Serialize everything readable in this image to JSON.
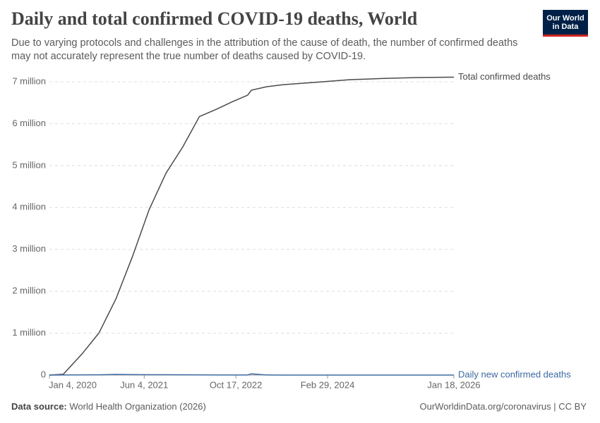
{
  "chart_data": {
    "type": "line",
    "title": "Daily and total confirmed COVID-19 deaths, World",
    "subtitle": "Due to varying protocols and challenges in the attribution of the cause of death, the number of confirmed deaths may not accurately represent the true number of deaths caused by COVID-19.",
    "logo": [
      "Our World",
      "in Data"
    ],
    "source_label": "Data source:",
    "source": "World Health Organization (2026)",
    "footer_right": "OurWorldinData.org/coronavirus | CC BY",
    "x": [
      "2020-01-04",
      "2020-03-20",
      "2020-07-01",
      "2020-10-01",
      "2021-01-01",
      "2021-04-01",
      "2021-07-01",
      "2021-10-01",
      "2022-01-01",
      "2022-04-01",
      "2022-07-01",
      "2022-10-01",
      "2022-12-20",
      "2023-01-10",
      "2023-04-01",
      "2023-07-01",
      "2024-01-01",
      "2024-07-01",
      "2025-01-01",
      "2025-07-01",
      "2026-01-18"
    ],
    "series": [
      {
        "name": "Total confirmed deaths",
        "color": "#4a4a4a",
        "values": [
          0,
          20000,
          510000,
          1010000,
          1820000,
          2830000,
          3950000,
          4820000,
          5450000,
          6170000,
          6340000,
          6530000,
          6680000,
          6800000,
          6880000,
          6930000,
          6990000,
          7050000,
          7080000,
          7100000,
          7110000
        ]
      },
      {
        "name": "Daily new confirmed deaths",
        "color": "#3c6aa0",
        "values": [
          0,
          2000,
          5000,
          6000,
          14000,
          11000,
          9000,
          8000,
          7000,
          4000,
          2000,
          2000,
          3000,
          30000,
          1500,
          800,
          600,
          400,
          300,
          200,
          100
        ]
      }
    ],
    "xlim": [
      "2020-01-04",
      "2026-01-18"
    ],
    "xticks": [
      {
        "value": "2020-01-04",
        "label": "Jan 4, 2020"
      },
      {
        "value": "2021-06-04",
        "label": "Jun 4, 2021"
      },
      {
        "value": "2022-10-17",
        "label": "Oct 17, 2022"
      },
      {
        "value": "2024-02-29",
        "label": "Feb 29, 2024"
      },
      {
        "value": "2026-01-18",
        "label": "Jan 18, 2026"
      }
    ],
    "ylim": [
      0,
      7000000
    ],
    "yticks": [
      0,
      {
        "value": 1000000,
        "label": "1 million"
      },
      {
        "value": 2000000,
        "label": "2 million"
      },
      {
        "value": 3000000,
        "label": "3 million"
      },
      {
        "value": 4000000,
        "label": "4 million"
      },
      {
        "value": 5000000,
        "label": "5 million"
      },
      {
        "value": 6000000,
        "label": "6 million"
      },
      {
        "value": 7000000,
        "label": "7 million"
      }
    ],
    "grid": true
  }
}
